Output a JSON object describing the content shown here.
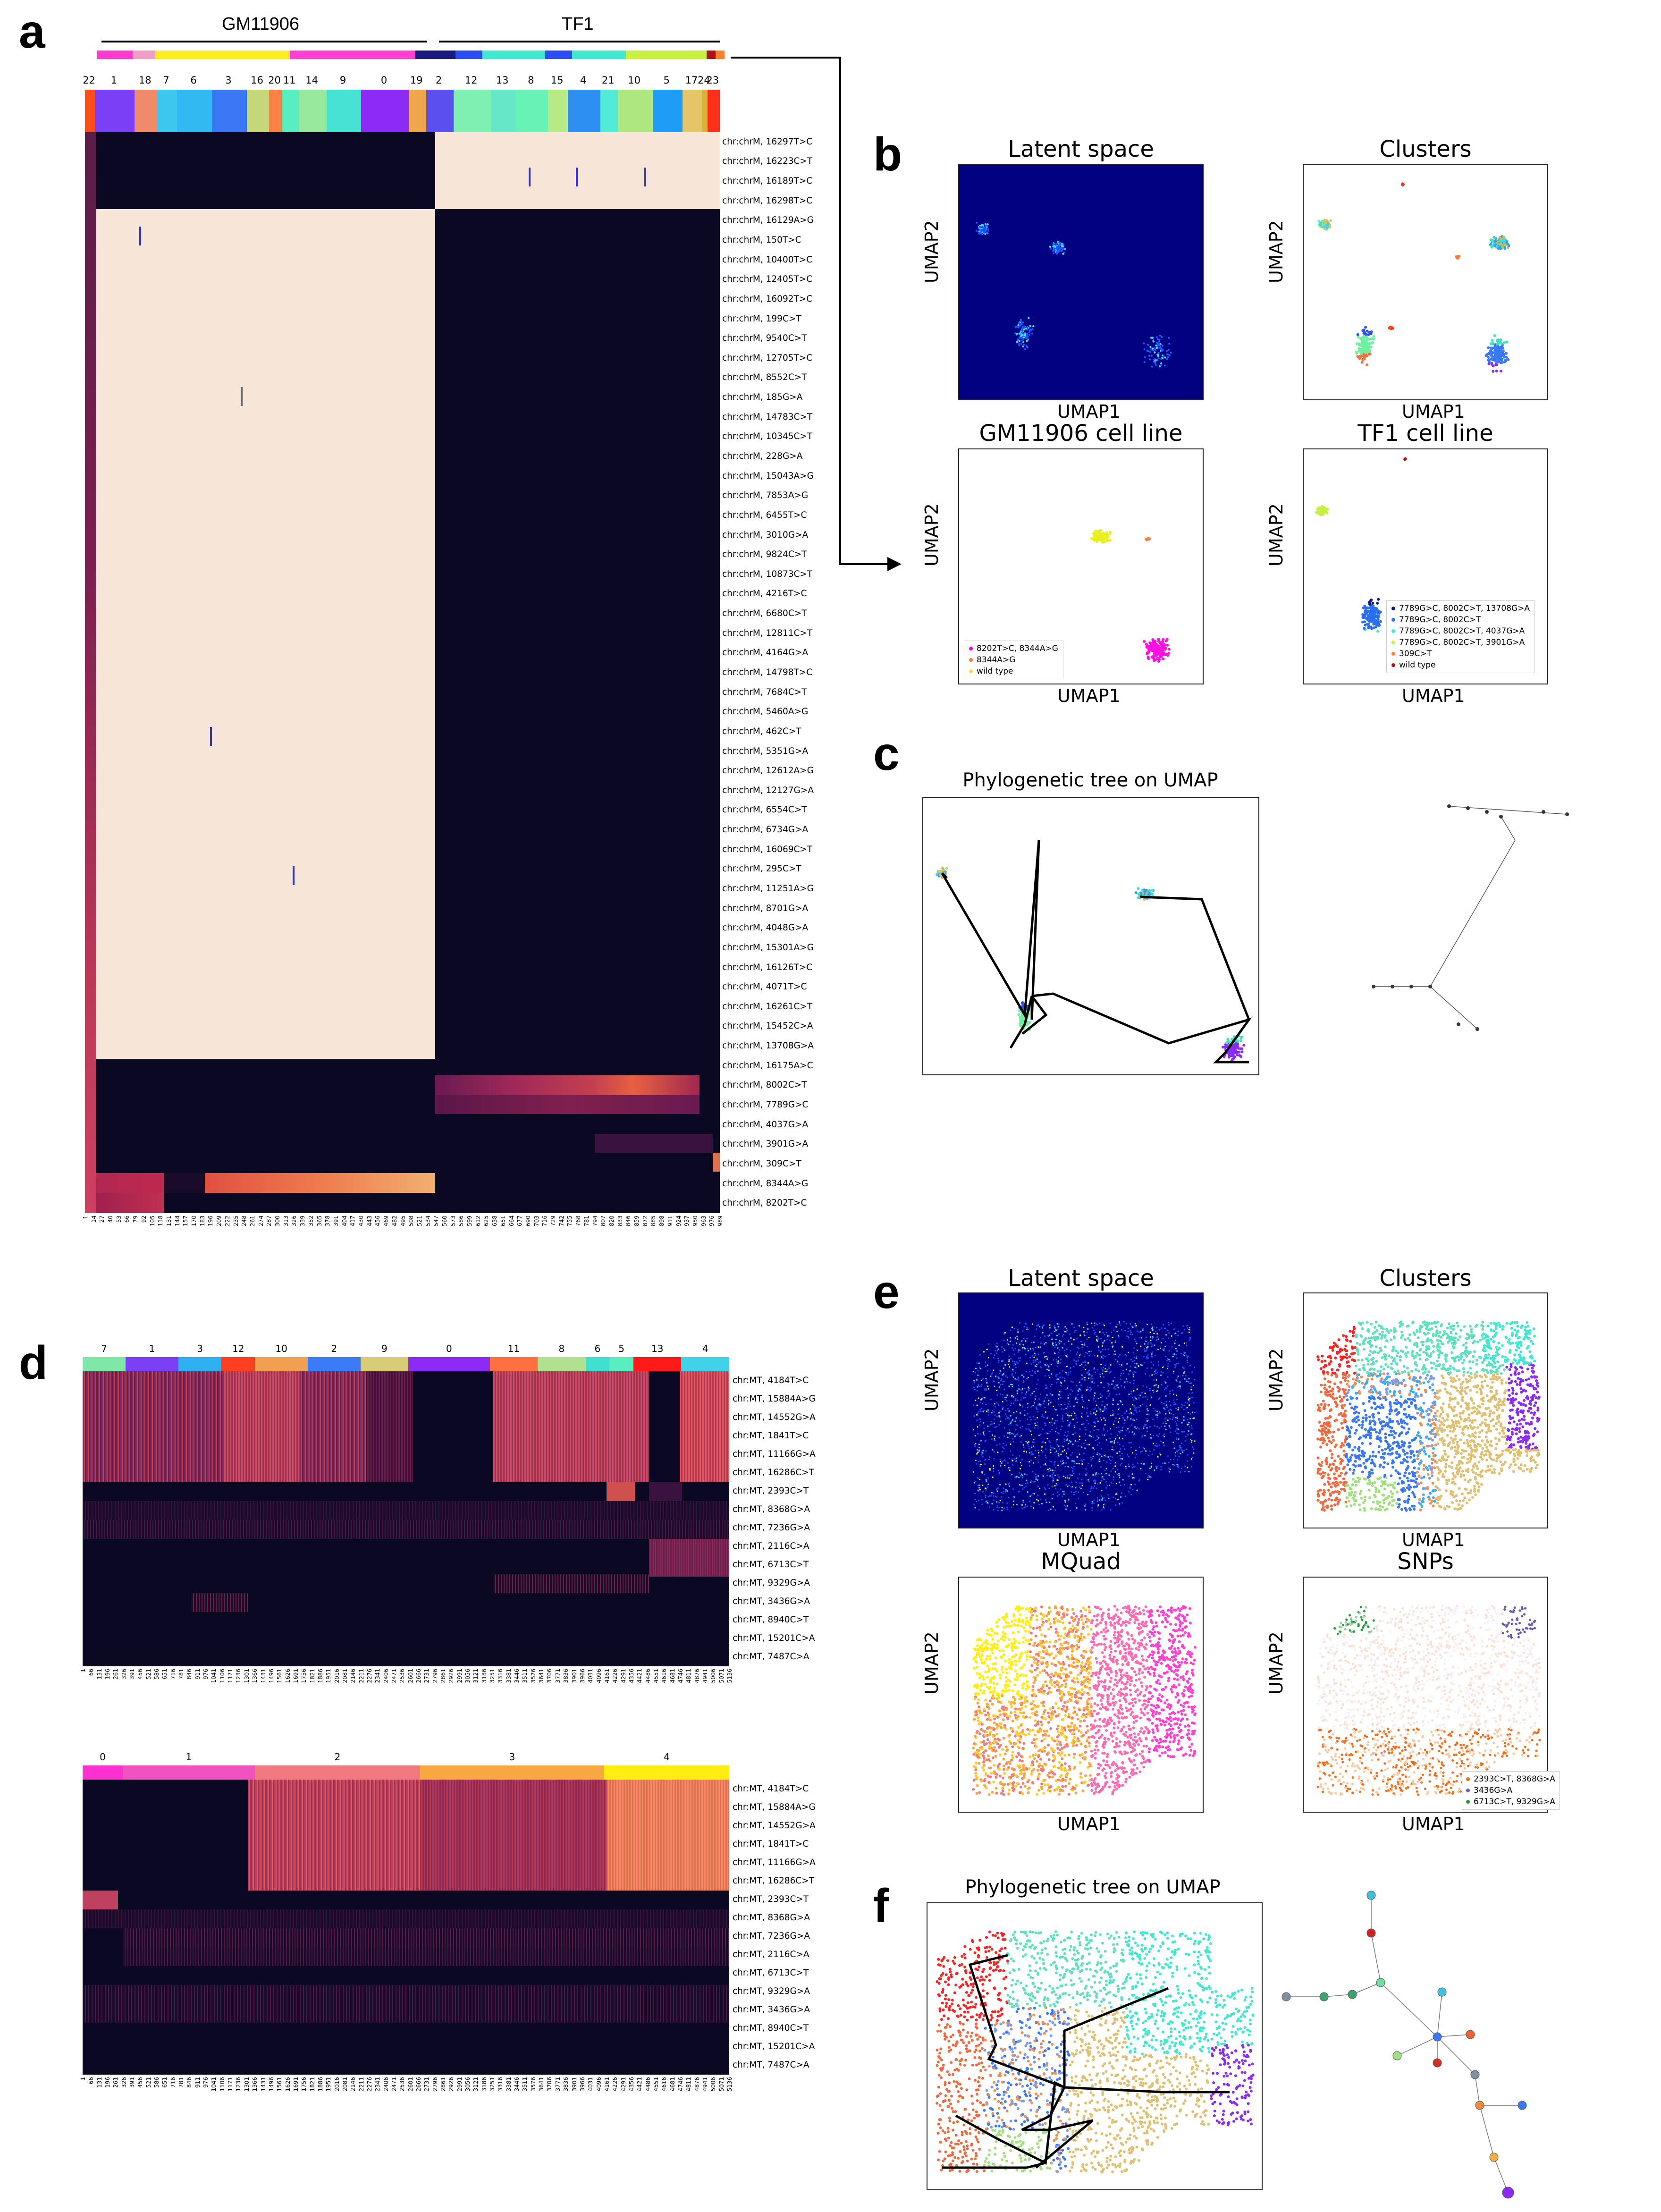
{
  "panel_letters": [
    "a",
    "b",
    "c",
    "d",
    "e",
    "f"
  ],
  "panel_a": {
    "group_labels": [
      "GM11906",
      "TF1"
    ],
    "cluster_labels": [
      "22",
      "1",
      "18",
      "7",
      "6",
      "3",
      "16",
      "20",
      "11",
      "14",
      "9",
      "0",
      "19",
      "2",
      "12",
      "13",
      "8",
      "15",
      "4",
      "21",
      "10",
      "5",
      "17",
      "24",
      "23"
    ],
    "cluster_colors": [
      "#ff4d1f",
      "#7b3ff5",
      "#f08a6b",
      "#3cc8ee",
      "#30b8f0",
      "#3a78f5",
      "#c6d77a",
      "#ff8043",
      "#58eec0",
      "#98e89e",
      "#44e2d2",
      "#8b2bf5",
      "#f0a64a",
      "#5a50f0",
      "#80f0b0",
      "#66e8c8",
      "#68f2b6",
      "#b8ea84",
      "#2e8ff2",
      "#50ead6",
      "#aee680",
      "#1f9cf5",
      "#e6c468",
      "#d6b23c",
      "#ff2f1a"
    ],
    "group_bar_colors": [
      "#ff3ad0",
      "#f09cc4",
      "#ffee20",
      "#ff40d0",
      "#1a1a80",
      "#2a4df5",
      "#40e8d0",
      "#2a4df5",
      "#40e8d0",
      "#c8f040",
      "#b01010",
      "#ff8030"
    ],
    "row_labels": [
      "chr:chrM, 16297T>C",
      "chr:chrM, 16223C>T",
      "chr:chrM, 16189T>C",
      "chr:chrM, 16298T>C",
      "chr:chrM, 16129A>G",
      "chr:chrM, 150T>C",
      "chr:chrM, 10400T>C",
      "chr:chrM, 12405T>C",
      "chr:chrM, 16092T>C",
      "chr:chrM, 199C>T",
      "chr:chrM, 9540C>T",
      "chr:chrM, 12705T>C",
      "chr:chrM, 8552C>T",
      "chr:chrM, 185G>A",
      "chr:chrM, 14783C>T",
      "chr:chrM, 10345C>T",
      "chr:chrM, 228G>A",
      "chr:chrM, 15043A>G",
      "chr:chrM, 7853A>G",
      "chr:chrM, 6455T>C",
      "chr:chrM, 3010G>A",
      "chr:chrM, 9824C>T",
      "chr:chrM, 10873C>T",
      "chr:chrM, 4216T>C",
      "chr:chrM, 6680C>T",
      "chr:chrM, 12811C>T",
      "chr:chrM, 4164G>A",
      "chr:chrM, 14798T>C",
      "chr:chrM, 7684C>T",
      "chr:chrM, 5460A>G",
      "chr:chrM, 462C>T",
      "chr:chrM, 5351G>A",
      "chr:chrM, 12612A>G",
      "chr:chrM, 12127G>A",
      "chr:chrM, 6554C>T",
      "chr:chrM, 6734G>A",
      "chr:chrM, 16069C>T",
      "chr:chrM, 295C>T",
      "chr:chrM, 11251A>G",
      "chr:chrM, 8701G>A",
      "chr:chrM, 4048G>A",
      "chr:chrM, 15301A>G",
      "chr:chrM, 16126T>C",
      "chr:chrM, 4071T>C",
      "chr:chrM, 16261C>T",
      "chr:chrM, 15452C>A",
      "chr:chrM, 13708G>A",
      "chr:chrM, 16175A>C",
      "chr:chrM, 8002C>T",
      "chr:chrM, 7789G>C",
      "chr:chrM, 4037G>A",
      "chr:chrM, 3901G>A",
      "chr:chrM, 309C>T",
      "chr:chrM, 8344A>G",
      "chr:chrM, 8202T>C"
    ],
    "x_ticks": [
      "1",
      "14",
      "27",
      "40",
      "53",
      "66",
      "79",
      "92",
      "105",
      "118",
      "131",
      "144",
      "157",
      "170",
      "183",
      "196",
      "209",
      "222",
      "235",
      "248",
      "261",
      "274",
      "287",
      "300",
      "313",
      "326",
      "339",
      "352",
      "365",
      "378",
      "391",
      "404",
      "417",
      "430",
      "443",
      "456",
      "469",
      "482",
      "495",
      "508",
      "521",
      "534",
      "547",
      "560",
      "573",
      "586",
      "599",
      "612",
      "625",
      "638",
      "651",
      "664",
      "677",
      "690",
      "703",
      "716",
      "729",
      "742",
      "755",
      "768",
      "781",
      "794",
      "807",
      "820",
      "833",
      "846",
      "859",
      "872",
      "885",
      "898",
      "911",
      "924",
      "937",
      "950",
      "963",
      "976",
      "989"
    ]
  },
  "panel_b": {
    "titles": [
      "Latent space",
      "Clusters",
      "GM11906 cell line",
      "TF1 cell line"
    ],
    "xlabel": "UMAP1",
    "ylabel": "UMAP2",
    "legend_gm": [
      {
        "label": "8202T>C, 8344A>G",
        "color": "#ff00dd"
      },
      {
        "label": "8344A>G",
        "color": "#ff7a3c"
      },
      {
        "label": "wild type",
        "color": "#ffd84a"
      }
    ],
    "legend_tf": [
      {
        "label": "7789G>C, 8002C>T, 13708G>A",
        "color": "#0a1a80"
      },
      {
        "label": "7789G>C, 8002C>T",
        "color": "#2a6ff0"
      },
      {
        "label": "7789G>C, 8002C>T, 4037G>A",
        "color": "#40e8d0"
      },
      {
        "label": "7789G>C, 8002C>T, 3901G>A",
        "color": "#c8f040"
      },
      {
        "label": "309C>T",
        "color": "#ff8030"
      },
      {
        "label": "wild type",
        "color": "#b01010"
      }
    ]
  },
  "panel_c": {
    "title": "Phylogenetic tree on UMAP"
  },
  "panel_d": {
    "top_cluster_labels": [
      "7",
      "1",
      "3",
      "12",
      "10",
      "2",
      "9",
      "0",
      "11",
      "8",
      "6",
      "5",
      "13",
      "4"
    ],
    "top_cluster_colors": [
      "#7ee8a8",
      "#7b3ff5",
      "#30b0f0",
      "#ff4020",
      "#f0a050",
      "#3a7cf5",
      "#d8cc78",
      "#8b2bf5",
      "#ff7040",
      "#b0e090",
      "#40e0d0",
      "#58eec0",
      "#ff1a1a",
      "#40d0e8"
    ],
    "bottom_cluster_labels": [
      "0",
      "1",
      "2",
      "3",
      "4"
    ],
    "bottom_cluster_colors": [
      "#ff30d0",
      "#f050c0",
      "#f07a80",
      "#f8a840",
      "#ffee10"
    ],
    "row_labels": [
      "chr:MT, 4184T>C",
      "chr:MT, 15884A>G",
      "chr:MT, 14552G>A",
      "chr:MT, 1841T>C",
      "chr:MT, 11166G>A",
      "chr:MT, 16286C>T",
      "chr:MT, 2393C>T",
      "chr:MT, 8368G>A",
      "chr:MT, 7236G>A",
      "chr:MT, 2116C>A",
      "chr:MT, 6713C>T",
      "chr:MT, 9329G>A",
      "chr:MT, 3436G>A",
      "chr:MT, 8940C>T",
      "chr:MT, 15201C>A",
      "chr:MT, 7487C>A"
    ],
    "x_ticks": [
      "1",
      "66",
      "131",
      "196",
      "261",
      "326",
      "391",
      "456",
      "521",
      "586",
      "651",
      "716",
      "781",
      "846",
      "911",
      "976",
      "1041",
      "1106",
      "1171",
      "1236",
      "1301",
      "1366",
      "1431",
      "1496",
      "1561",
      "1626",
      "1691",
      "1756",
      "1821",
      "1886",
      "1951",
      "2016",
      "2081",
      "2146",
      "2211",
      "2276",
      "2341",
      "2406",
      "2471",
      "2536",
      "2601",
      "2666",
      "2731",
      "2796",
      "2861",
      "2926",
      "2991",
      "3056",
      "3121",
      "3186",
      "3251",
      "3316",
      "3381",
      "3446",
      "3511",
      "3576",
      "3641",
      "3706",
      "3771",
      "3836",
      "3901",
      "3966",
      "4031",
      "4096",
      "4161",
      "4226",
      "4291",
      "4356",
      "4421",
      "4486",
      "4551",
      "4616",
      "4681",
      "4746",
      "4811",
      "4876",
      "4941",
      "5006",
      "5071",
      "5136"
    ]
  },
  "panel_e": {
    "titles": [
      "Latent space",
      "Clusters",
      "MQuad",
      "SNPs"
    ],
    "xlabel": "UMAP1",
    "ylabel": "UMAP2",
    "legend_snps": [
      {
        "label": "2393C>T, 8368G>A",
        "color": "#f07020"
      },
      {
        "label": "3436G>A",
        "color": "#6a5ab0"
      },
      {
        "label": "6713C>T, 9329G>A",
        "color": "#2a9a40"
      }
    ]
  },
  "panel_f": {
    "title": "Phylogenetic tree on UMAP"
  }
}
